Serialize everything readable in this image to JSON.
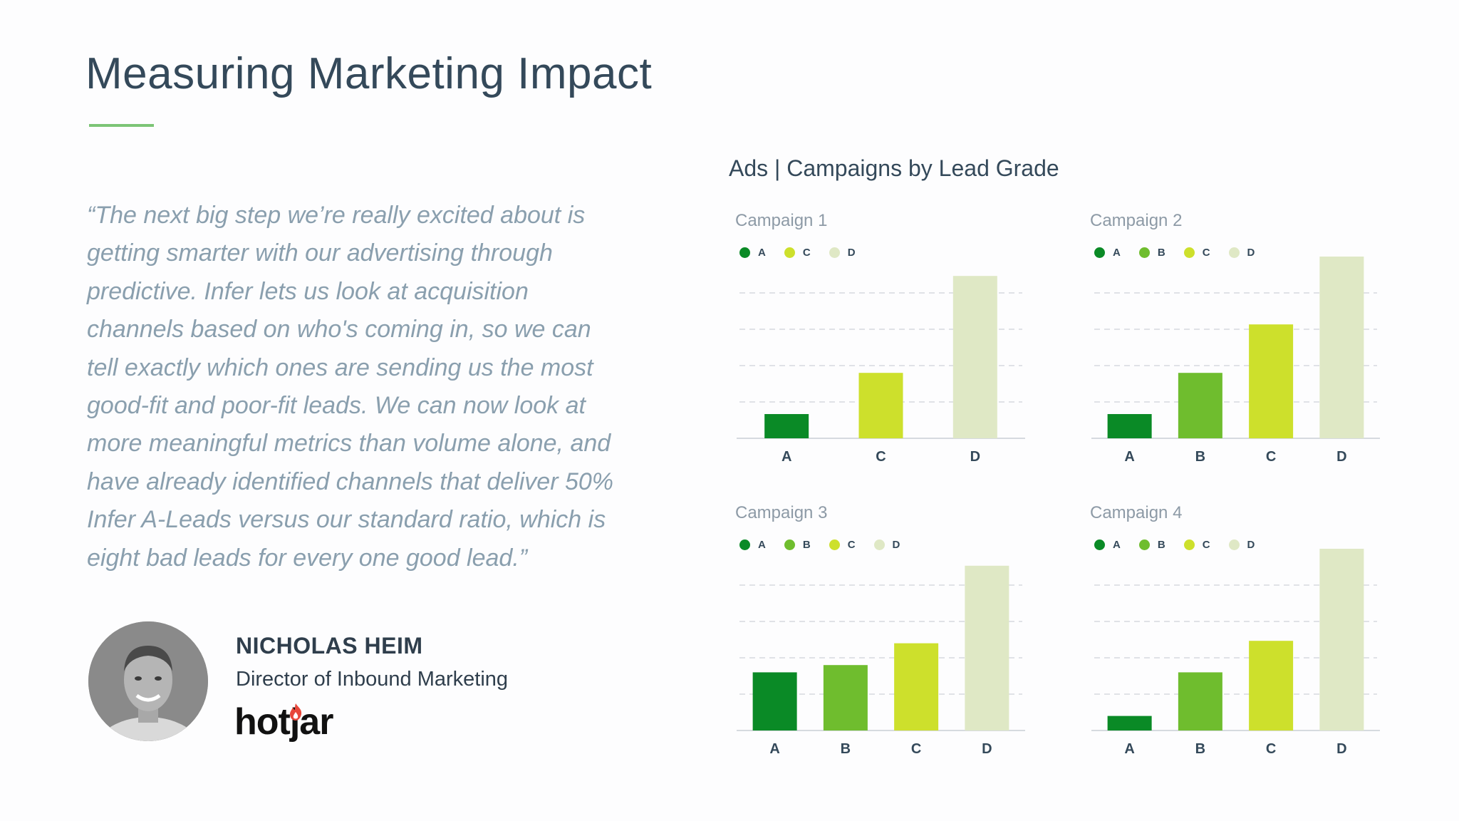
{
  "slide": {
    "title": "Measuring Marketing Impact"
  },
  "quote": {
    "lines": [
      "“The next big step we’re really excited about is",
      "getting smarter with our advertising through",
      "predictive. Infer lets us look at acquisition",
      "channels based on who's coming in, so we can",
      "tell exactly which ones are sending us the most",
      "good-fit and poor-fit leads. We can now look at",
      "more meaningful metrics than volume alone, and",
      "have already identified channels that deliver 50%",
      "Infer A-Leads versus our standard ratio, which is",
      "eight bad leads for every one good lead.”"
    ]
  },
  "person": {
    "name": "NICHOLAS HEIM",
    "role": "Director of Inbound Marketing",
    "company_logo": "hotjar"
  },
  "charts_heading": "Ads | Campaigns by Lead Grade",
  "colors": {
    "A": "#0a8a26",
    "B": "#6fbd2e",
    "C": "#cde02c",
    "D": "#dfe8c5",
    "grid": "#d6dadf",
    "axis": "#d6dadf",
    "flame": "#e8473a"
  },
  "chart_data": [
    {
      "type": "bar",
      "title": "Campaign 1",
      "categories": [
        "A",
        "C",
        "D"
      ],
      "values": [
        1,
        2.7,
        6.7
      ],
      "ylim": [
        0,
        8
      ],
      "grid": true,
      "legend": "top-left"
    },
    {
      "type": "bar",
      "title": "Campaign 2",
      "categories": [
        "A",
        "B",
        "C",
        "D"
      ],
      "values": [
        1,
        2.7,
        4.7,
        7.5
      ],
      "ylim": [
        0,
        8
      ],
      "grid": true,
      "legend": "top-left"
    },
    {
      "type": "bar",
      "title": "Campaign 3",
      "categories": [
        "A",
        "B",
        "C",
        "D"
      ],
      "values": [
        2.4,
        2.7,
        3.6,
        6.8
      ],
      "ylim": [
        0,
        8
      ],
      "grid": true,
      "legend": "top-left"
    },
    {
      "type": "bar",
      "title": "Campaign 4",
      "categories": [
        "A",
        "B",
        "C",
        "D"
      ],
      "values": [
        0.6,
        2.4,
        3.7,
        7.5
      ],
      "ylim": [
        0,
        8
      ],
      "grid": true,
      "legend": "top-left"
    }
  ]
}
